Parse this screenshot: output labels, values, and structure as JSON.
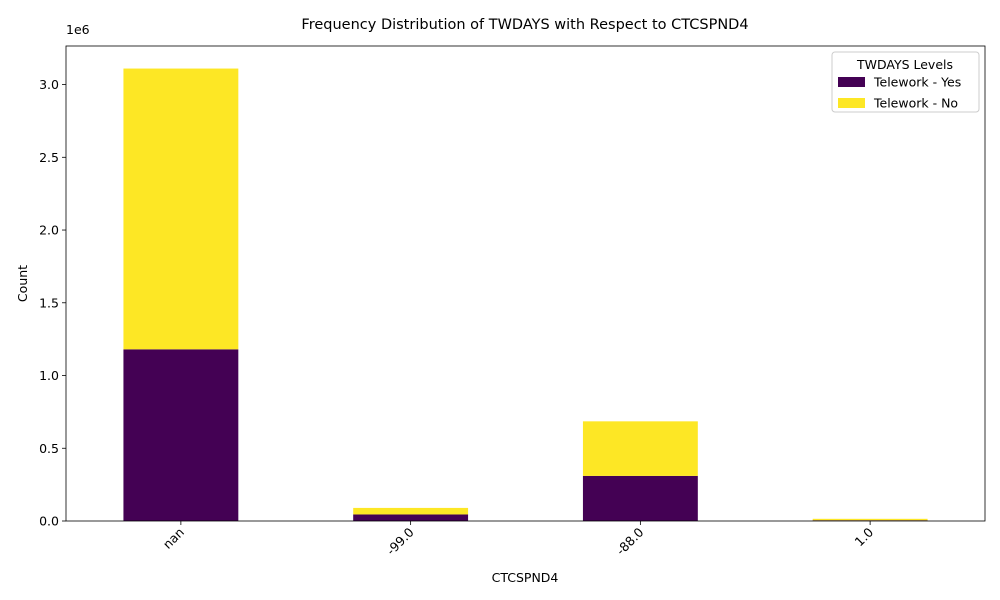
{
  "chart_data": {
    "type": "bar",
    "stacked": true,
    "title": "Frequency Distribution of TWDAYS with Respect to CTCSPND4",
    "xlabel": "CTCSPND4",
    "ylabel": "Count",
    "y_offset_text": "1e6",
    "categories": [
      "nan",
      "-99.0",
      "-88.0",
      "1.0"
    ],
    "ylim": [
      0,
      3265000
    ],
    "yticks": [
      0,
      500000,
      1000000,
      1500000,
      2000000,
      2500000,
      3000000
    ],
    "ytick_labels": [
      "0.0",
      "0.5",
      "1.0",
      "1.5",
      "2.0",
      "2.5",
      "3.0"
    ],
    "series": [
      {
        "name": "Telework - Yes",
        "values": [
          1180000,
          45000,
          310000,
          5000
        ],
        "color": "#440154"
      },
      {
        "name": "Telework - No",
        "values": [
          1930000,
          45000,
          375000,
          10000
        ],
        "color": "#fde725"
      }
    ],
    "legend": {
      "title": "TWDAYS Levels",
      "position": "top-right"
    },
    "grid": false
  }
}
